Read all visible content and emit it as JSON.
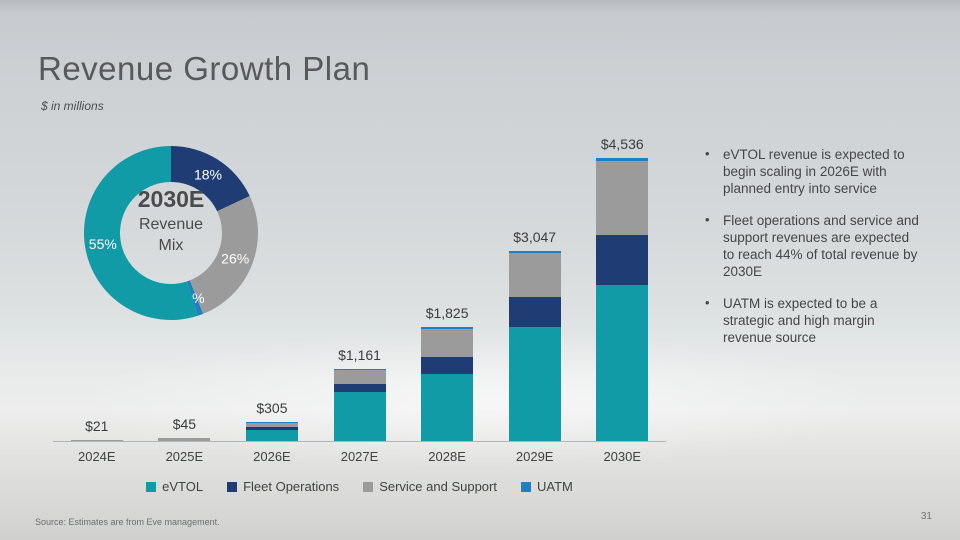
{
  "slide": {
    "title": "Revenue Growth Plan",
    "subtitle": "$ in millions",
    "source": "Source: Estimates are from Eve management.",
    "page_number": "31"
  },
  "colors": {
    "evtol": "#119ba6",
    "fleet_operations": "#1f3d74",
    "service_and_support": "#9b9b9b",
    "uatm": "#1d80c3"
  },
  "donut": {
    "center_title": "2030E",
    "center_line2": "Revenue",
    "center_line3": "Mix",
    "segments": [
      {
        "name": "Fleet Operations",
        "pct": 18,
        "label": "18%",
        "color": "fleet_operations"
      },
      {
        "name": "Service and Support",
        "pct": 26,
        "label": "26%",
        "color": "service_and_support"
      },
      {
        "name": "UATM",
        "pct": 1,
        "label": "1%",
        "color": "uatm"
      },
      {
        "name": "eVTOL",
        "pct": 55,
        "label": "55%",
        "color": "evtol"
      }
    ]
  },
  "chart_data": {
    "type": "bar",
    "stacked": true,
    "title": "Revenue Growth Plan",
    "units": "$ in millions",
    "categories": [
      "2024E",
      "2025E",
      "2026E",
      "2027E",
      "2028E",
      "2029E",
      "2030E"
    ],
    "totals": [
      21,
      45,
      305,
      1161,
      1825,
      3047,
      4536
    ],
    "total_labels": [
      "$21",
      "$45",
      "$305",
      "$1,161",
      "$1,825",
      "$3,047",
      "$4,536"
    ],
    "series": [
      {
        "name": "eVTOL",
        "color": "evtol",
        "values": [
          0,
          0,
          180,
          790,
          1080,
          1820,
          2495
        ]
      },
      {
        "name": "Fleet Operations",
        "color": "fleet_operations",
        "values": [
          0,
          0,
          45,
          130,
          270,
          490,
          815
        ]
      },
      {
        "name": "Service and Support",
        "color": "service_and_support",
        "values": [
          21,
          45,
          70,
          215,
          445,
          700,
          1180
        ]
      },
      {
        "name": "UATM",
        "color": "uatm",
        "values": [
          0,
          0,
          10,
          26,
          30,
          37,
          46
        ]
      }
    ],
    "ylim": [
      0,
      4536
    ],
    "grid": false,
    "legend_position": "bottom"
  },
  "legend": [
    {
      "label": "eVTOL",
      "color": "evtol"
    },
    {
      "label": "Fleet Operations",
      "color": "fleet_operations"
    },
    {
      "label": "Service and Support",
      "color": "service_and_support"
    },
    {
      "label": "UATM",
      "color": "uatm"
    }
  ],
  "bullets": [
    "eVTOL revenue is expected to begin scaling in 2026E with planned entry into service",
    "Fleet operations and service and support revenues are expected to reach 44% of total revenue by 2030E",
    "UATM is expected to be a strategic and high margin revenue source"
  ]
}
